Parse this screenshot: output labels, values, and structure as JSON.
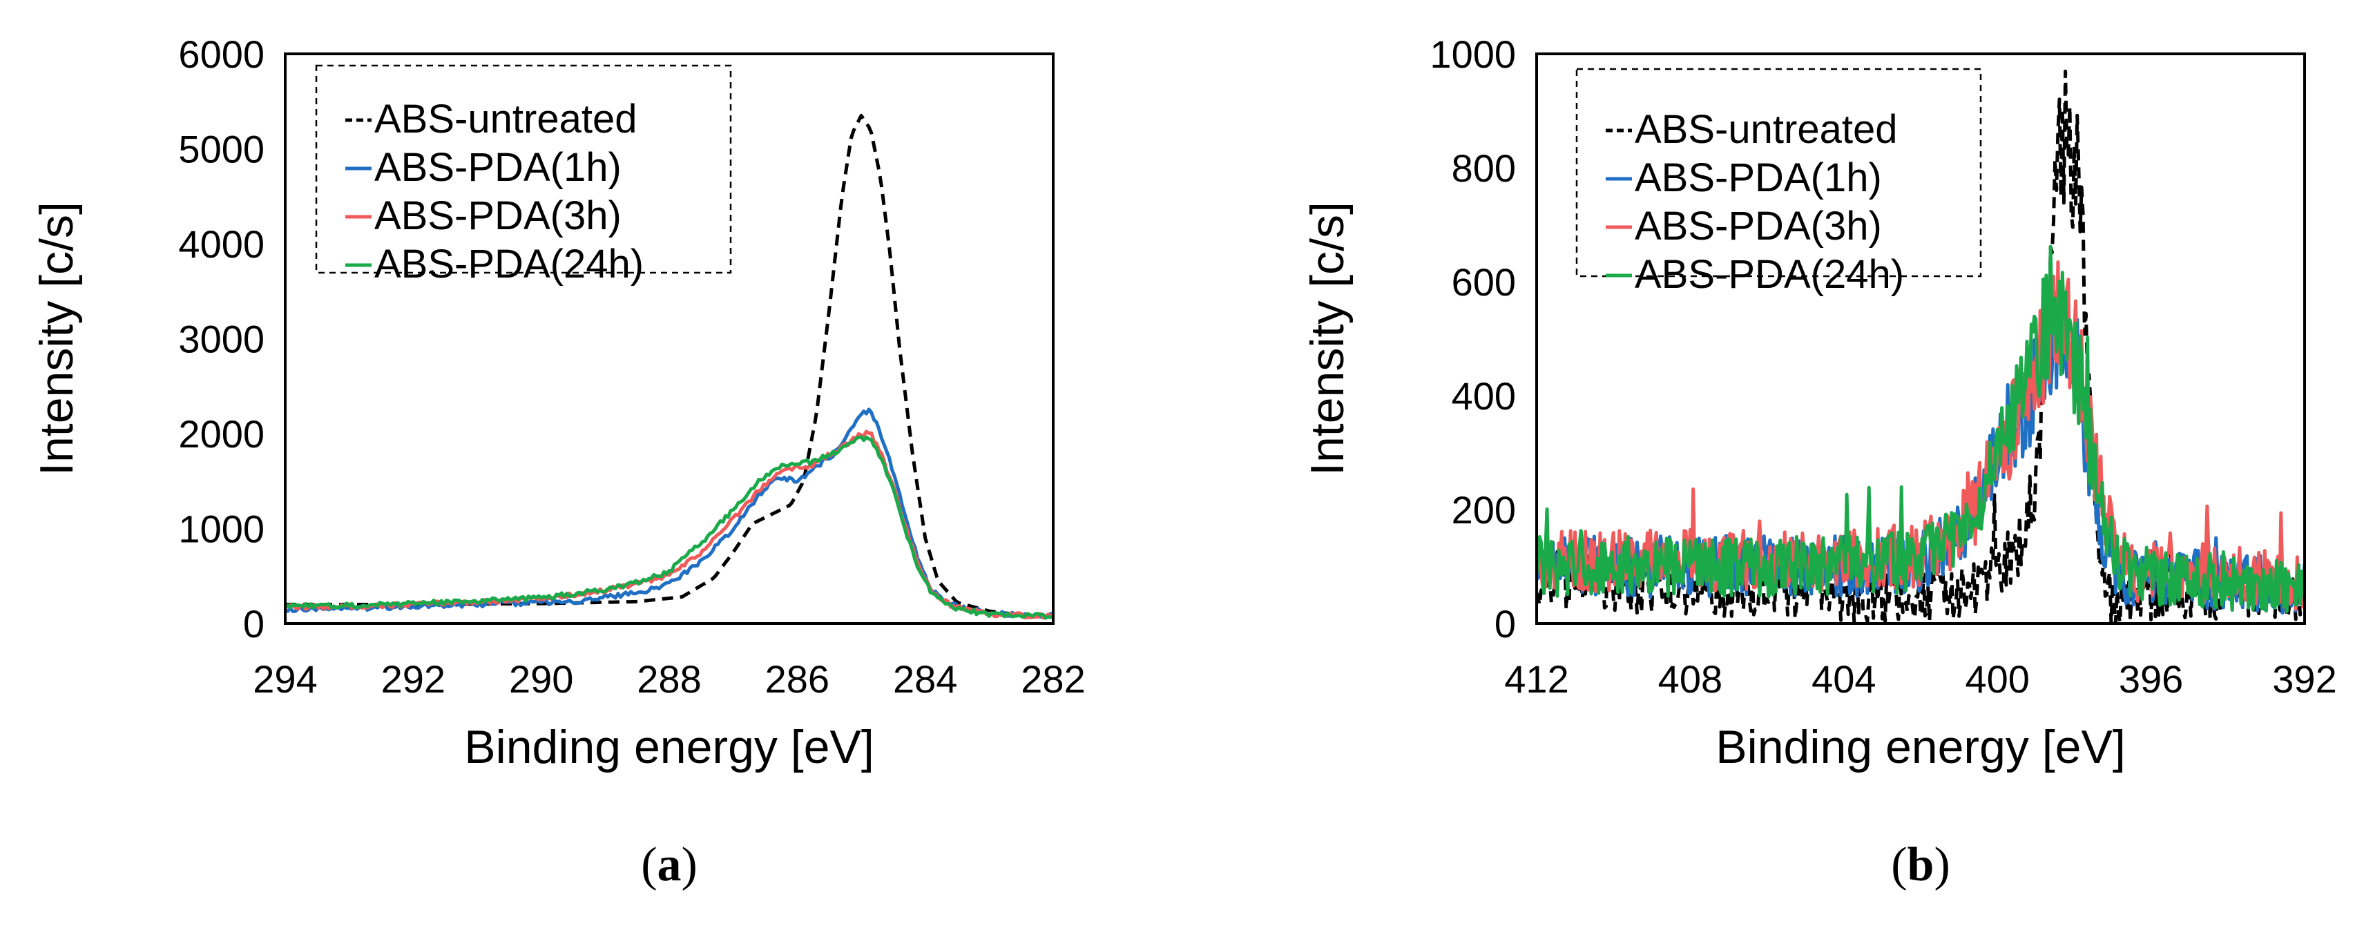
{
  "chart_data": [
    {
      "panel": "(a)",
      "type": "line",
      "xlabel": "Binding energy [eV]",
      "ylabel": "Intensity [c/s]",
      "xlim": [
        294,
        282
      ],
      "ylim": [
        0,
        6000
      ],
      "x_ticks": [
        294,
        292,
        290,
        288,
        286,
        284,
        282
      ],
      "y_ticks": [
        0,
        1000,
        2000,
        3000,
        4000,
        5000,
        6000
      ],
      "legend": "top-left",
      "series": [
        {
          "name": "ABS-untreated",
          "color": "#000000",
          "dash": "dashed",
          "x": [
            294,
            292,
            290,
            288.5,
            287.8,
            287.3,
            287,
            286.7,
            286.4,
            286.1,
            285.9,
            285.7,
            285.5,
            285.3,
            285.15,
            285,
            284.85,
            284.7,
            284.55,
            284.4,
            284.2,
            284,
            283.8,
            283.5,
            283,
            282.5,
            282
          ],
          "y": [
            200,
            200,
            210,
            230,
            280,
            480,
            750,
            1050,
            1150,
            1250,
            1500,
            2200,
            3300,
            4500,
            5150,
            5350,
            5200,
            4700,
            3900,
            2900,
            1800,
            900,
            450,
            220,
            130,
            90,
            70
          ]
        },
        {
          "name": "ABS-PDA(1h)",
          "color": "#1f6fc4",
          "dash": "solid",
          "x": [
            294,
            293,
            292,
            291,
            290,
            289.5,
            289,
            288.5,
            288,
            287.5,
            287,
            286.6,
            286.3,
            286,
            285.8,
            285.6,
            285.4,
            285.2,
            285,
            284.85,
            284.7,
            284.5,
            284.3,
            284.1,
            283.9,
            283.6,
            283.3,
            283,
            282.5,
            282
          ],
          "y": [
            150,
            160,
            180,
            200,
            220,
            230,
            280,
            320,
            420,
            650,
            1000,
            1350,
            1550,
            1500,
            1600,
            1700,
            1800,
            2000,
            2200,
            2250,
            2000,
            1600,
            1100,
            650,
            350,
            200,
            140,
            110,
            90,
            80
          ]
        },
        {
          "name": "ABS-PDA(3h)",
          "color": "#f05a5a",
          "dash": "solid",
          "x": [
            294,
            293,
            292,
            291,
            290,
            289.5,
            289,
            288.5,
            288,
            287.5,
            287,
            286.6,
            286.3,
            286,
            285.8,
            285.6,
            285.4,
            285.2,
            285,
            284.85,
            284.7,
            284.5,
            284.3,
            284.1,
            283.9,
            283.6,
            283.3,
            283,
            282.5,
            282
          ],
          "y": [
            170,
            180,
            200,
            230,
            260,
            300,
            350,
            420,
            500,
            750,
            1100,
            1400,
            1600,
            1650,
            1650,
            1750,
            1800,
            1900,
            2000,
            2000,
            1800,
            1450,
            1000,
            600,
            330,
            190,
            130,
            100,
            85,
            75
          ]
        },
        {
          "name": "ABS-PDA(24h)",
          "color": "#1aaa4a",
          "dash": "solid",
          "x": [
            294,
            293,
            292,
            291,
            290,
            289.5,
            289,
            288.5,
            288,
            287.5,
            287,
            286.6,
            286.3,
            286,
            285.8,
            285.6,
            285.4,
            285.2,
            285,
            284.85,
            284.7,
            284.5,
            284.3,
            284.1,
            283.9,
            283.6,
            283.3,
            283,
            282.5,
            282
          ],
          "y": [
            180,
            190,
            210,
            240,
            270,
            310,
            360,
            430,
            550,
            850,
            1200,
            1500,
            1650,
            1700,
            1700,
            1750,
            1800,
            1900,
            1950,
            1950,
            1750,
            1400,
            950,
            580,
            320,
            180,
            130,
            100,
            85,
            75
          ]
        }
      ]
    },
    {
      "panel": "(b)",
      "type": "line",
      "xlabel": "Binding energy [eV]",
      "ylabel": "Intensity [c/s]",
      "xlim": [
        412,
        392
      ],
      "ylim": [
        0,
        1000
      ],
      "x_ticks": [
        412,
        408,
        404,
        400,
        396,
        392
      ],
      "y_ticks": [
        0,
        200,
        400,
        600,
        800,
        1000
      ],
      "legend": "top-left",
      "series": [
        {
          "name": "ABS-untreated",
          "color": "#000000",
          "dash": "dashed",
          "x": [
            412,
            410,
            408,
            406,
            404,
            402,
            400.5,
            399.5,
            399,
            398.7,
            398.5,
            398.3,
            398.1,
            397.9,
            397.7,
            397.5,
            397.2,
            396.9,
            396.5,
            395,
            393,
            392
          ],
          "y": [
            80,
            70,
            60,
            60,
            50,
            50,
            60,
            120,
            250,
            500,
            700,
            850,
            860,
            780,
            550,
            250,
            60,
            20,
            40,
            50,
            60,
            50
          ]
        },
        {
          "name": "ABS-PDA(1h)",
          "color": "#1f6fc4",
          "dash": "solid",
          "x": [
            412,
            410,
            408,
            406,
            404,
            402,
            401,
            400.5,
            400,
            399.5,
            399,
            398.7,
            398.4,
            398.1,
            397.8,
            397.5,
            397.2,
            396.8,
            396.4,
            395,
            393,
            392
          ],
          "y": [
            100,
            100,
            100,
            100,
            100,
            110,
            150,
            220,
            320,
            360,
            420,
            480,
            520,
            490,
            380,
            250,
            150,
            90,
            80,
            80,
            70,
            60
          ]
        },
        {
          "name": "ABS-PDA(3h)",
          "color": "#f05a5a",
          "dash": "solid",
          "x": [
            412,
            410,
            408,
            406,
            404,
            402,
            401,
            400.5,
            400,
            399.5,
            399,
            398.7,
            398.4,
            398.1,
            397.8,
            397.5,
            397.2,
            396.8,
            396.4,
            395,
            393,
            392
          ],
          "y": [
            110,
            110,
            110,
            110,
            110,
            120,
            160,
            210,
            290,
            360,
            440,
            500,
            540,
            510,
            420,
            300,
            200,
            120,
            90,
            90,
            80,
            70
          ]
        },
        {
          "name": "ABS-PDA(24h)",
          "color": "#1aaa4a",
          "dash": "solid",
          "x": [
            412,
            410,
            408,
            406,
            404,
            402,
            401,
            400.5,
            400,
            399.5,
            399,
            398.7,
            398.4,
            398.1,
            397.8,
            397.5,
            397.2,
            396.8,
            396.4,
            395,
            393,
            392
          ],
          "y": [
            100,
            100,
            100,
            100,
            100,
            110,
            150,
            200,
            280,
            380,
            470,
            530,
            550,
            500,
            400,
            280,
            180,
            110,
            85,
            80,
            70,
            60
          ]
        }
      ]
    }
  ]
}
